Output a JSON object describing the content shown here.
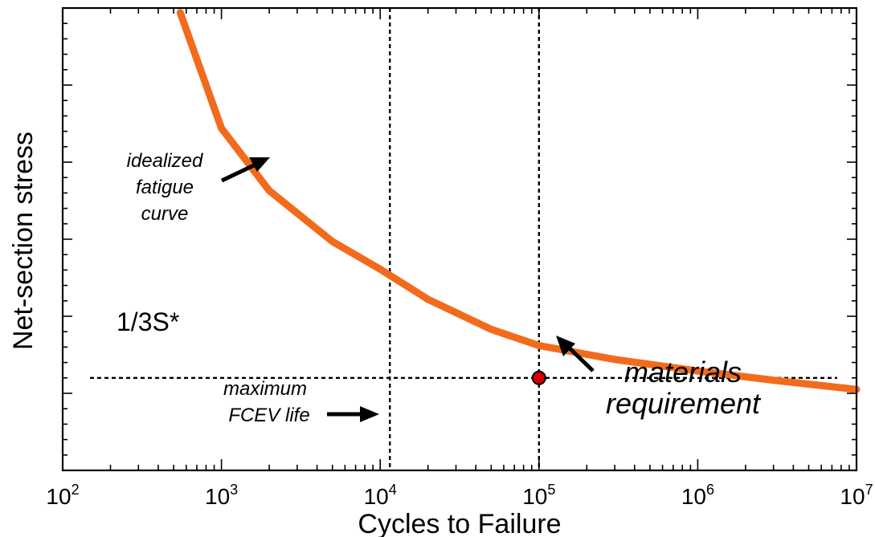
{
  "chart_data": {
    "type": "line",
    "xlabel": "Cycles to Failure",
    "ylabel": "Net-section stress",
    "x_scale": "log",
    "xlim": [
      100,
      10000000
    ],
    "ylim": [
      0,
      10
    ],
    "x_tick_labels": [
      {
        "base": "10",
        "exp": "2"
      },
      {
        "base": "10",
        "exp": "3"
      },
      {
        "base": "10",
        "exp": "4"
      },
      {
        "base": "10",
        "exp": "5"
      },
      {
        "base": "10",
        "exp": "6"
      },
      {
        "base": "10",
        "exp": "7"
      }
    ],
    "series": [
      {
        "color": "#f26b1d",
        "x": [
          550,
          1000,
          2000,
          5000,
          10000,
          20000,
          50000,
          100000,
          300000,
          1000000,
          3000000,
          10000000
        ],
        "y": [
          9.9,
          7.4,
          6.05,
          4.95,
          4.35,
          3.7,
          3.05,
          2.7,
          2.4,
          2.15,
          1.95,
          1.75
        ]
      }
    ],
    "reference_lines": {
      "stress_level": {
        "y": 2.0,
        "label": "1/3S*"
      },
      "max_life": {
        "x": 11500
      },
      "requirement": {
        "x": 100000
      }
    },
    "marker": {
      "x": 100000,
      "y": 2.0,
      "color": "#d40000"
    },
    "annotations": {
      "curve_note": [
        "idealized",
        "fatigue",
        "curve"
      ],
      "life_note": [
        "maximum",
        "FCEV life"
      ],
      "requirement_note": [
        "materials",
        "requirement"
      ]
    }
  }
}
